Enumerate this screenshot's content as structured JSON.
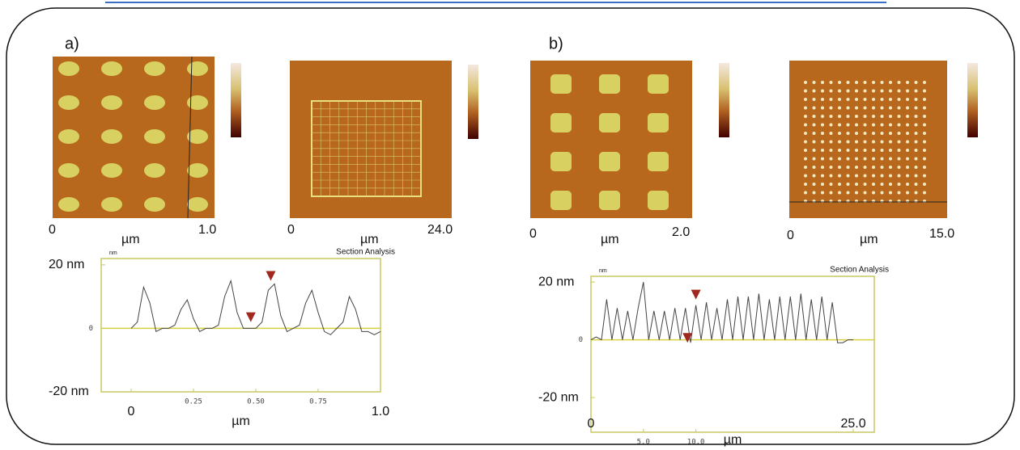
{
  "panels": [
    {
      "label": "a)",
      "images": [
        {
          "start": "0",
          "unit": "µm",
          "end": "1.0"
        },
        {
          "start": "0",
          "unit": "µm",
          "end": "24.0"
        }
      ]
    },
    {
      "label": "b)",
      "images": [
        {
          "start": "0",
          "unit": "µm",
          "end": "2.0"
        },
        {
          "start": "0",
          "unit": "µm",
          "end": "15.0"
        }
      ]
    }
  ],
  "chart_data": [
    {
      "type": "line",
      "title": "Section Analysis",
      "y_unit": "nm",
      "x_label": "µm",
      "color": "#444444",
      "x": [
        0,
        0.025,
        0.05,
        0.075,
        0.1,
        0.125,
        0.15,
        0.175,
        0.2,
        0.225,
        0.25,
        0.275,
        0.3,
        0.325,
        0.35,
        0.375,
        0.4,
        0.425,
        0.45,
        0.475,
        0.5,
        0.525,
        0.55,
        0.575,
        0.6,
        0.625,
        0.65,
        0.675,
        0.7,
        0.725,
        0.75,
        0.775,
        0.8,
        0.825,
        0.85,
        0.875,
        0.9,
        0.925,
        0.95,
        0.975,
        1.0
      ],
      "values": [
        0,
        2,
        13,
        8,
        -1,
        0,
        0,
        1,
        6,
        9,
        3,
        -1,
        0,
        0,
        1,
        10,
        15,
        5,
        0,
        0,
        0,
        2,
        12,
        14,
        4,
        -1,
        0,
        1,
        8,
        12,
        5,
        -1,
        -2,
        0,
        2,
        10,
        6,
        -1,
        -1,
        -2,
        -1
      ],
      "xlim": [
        -0.12,
        1.0
      ],
      "xticks": [
        0,
        0.25,
        {
          "value": 0.5,
          "label": "0.50"
        },
        0.75,
        {
          "value": 1,
          "label": "1.0"
        }
      ],
      "ylim": [
        -20,
        22
      ],
      "yticks": [
        {
          "value": -20,
          "label": "-20 nm"
        },
        0,
        {
          "value": 20,
          "label": "20 nm"
        }
      ],
      "markers": [
        {
          "x": 0.48,
          "y": 2
        },
        {
          "x": 0.56,
          "y": 15
        }
      ],
      "marker_color": "#a0281e"
    },
    {
      "type": "line",
      "title": "Section Analysis",
      "y_unit": "nm",
      "x_label": "µm",
      "color": "#444444",
      "x": [
        0,
        0.5,
        1.0,
        1.5,
        2.0,
        2.5,
        3.0,
        3.5,
        4.0,
        4.5,
        5.0,
        5.5,
        6.0,
        6.5,
        7.0,
        7.5,
        8.0,
        8.5,
        9.0,
        9.5,
        10.0,
        10.5,
        11.0,
        11.5,
        12.0,
        12.5,
        13.0,
        13.5,
        14.0,
        14.5,
        15.0,
        15.5,
        16.0,
        16.5,
        17.0,
        17.5,
        18.0,
        18.5,
        19.0,
        19.5,
        20.0,
        20.5,
        21.0,
        21.5,
        22.0,
        22.5,
        23.0,
        23.5,
        24.0,
        24.5,
        25.0
      ],
      "values": [
        0,
        1,
        0,
        14,
        0,
        11,
        0,
        10,
        0,
        11,
        20,
        0,
        10,
        0,
        10,
        0,
        11,
        0,
        11,
        -1,
        12,
        0,
        13,
        0,
        11,
        0,
        14,
        0,
        15,
        0,
        15,
        0,
        16,
        0,
        14,
        0,
        15,
        0,
        15,
        0,
        16,
        0,
        14,
        0,
        15,
        0,
        13,
        -1,
        -1,
        0,
        0
      ],
      "xlim": [
        0,
        27
      ],
      "xticks": [
        0,
        {
          "value": 5,
          "label": "5.0"
        },
        {
          "value": 10,
          "label": "10.0"
        },
        {
          "value": 25,
          "label": "25.0"
        }
      ],
      "ylim": [
        -32,
        22
      ],
      "yticks": [
        {
          "value": -20,
          "label": "-20 nm"
        },
        0,
        {
          "value": 20,
          "label": "20 nm"
        }
      ],
      "markers": [
        {
          "x": 9.2,
          "y": -1
        },
        {
          "x": 10.0,
          "y": 14
        }
      ],
      "marker_color": "#a0281e"
    }
  ]
}
